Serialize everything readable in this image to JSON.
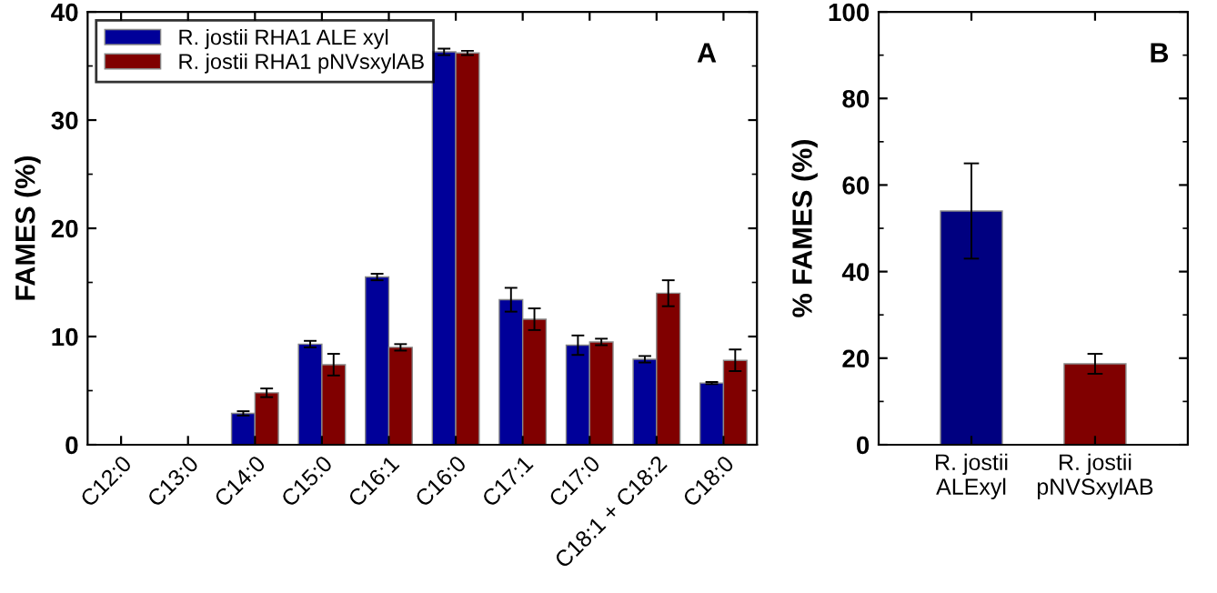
{
  "chart_data": [
    {
      "type": "bar",
      "ylabel": "FAMES (%)",
      "categories": [
        "C12:0",
        "C13:0",
        "C14:0",
        "C15:0",
        "C16:1",
        "C16:0",
        "C17:1",
        "C17:0",
        "C18:1 + C18:2",
        "C18:0"
      ],
      "series": [
        {
          "name": "R. jostii RHA1 ALE xyl",
          "color": "#000099",
          "values": [
            null,
            null,
            2.9,
            9.3,
            15.5,
            36.3,
            13.4,
            9.2,
            7.9,
            5.7
          ],
          "errors": [
            null,
            null,
            0.2,
            0.3,
            0.3,
            0.3,
            1.1,
            0.9,
            0.3,
            0.1
          ]
        },
        {
          "name": "R. jostii RHA1 pNVsxylAB",
          "color": "#800000",
          "values": [
            null,
            null,
            4.8,
            7.4,
            9.0,
            36.2,
            11.6,
            9.5,
            14.0,
            7.8
          ],
          "errors": [
            null,
            null,
            0.4,
            1.0,
            0.3,
            0.2,
            1.0,
            0.3,
            1.2,
            1.0
          ]
        }
      ],
      "ylim": [
        0,
        40
      ],
      "yticks": [
        0,
        10,
        20,
        30,
        40
      ],
      "legend": "top left",
      "grid": false,
      "annotations": [
        "A"
      ]
    },
    {
      "type": "bar",
      "ylabel": "% FAMES (%)",
      "categories": [
        "R. jostii\nALExyl",
        "R. jostii\npNVSxylAB"
      ],
      "values": [
        54,
        18.7
      ],
      "errors": [
        11,
        2.3
      ],
      "colors": [
        "#000080",
        "#800000"
      ],
      "ylim": [
        0,
        100
      ],
      "yticks": [
        0,
        20,
        40,
        60,
        80,
        100
      ],
      "grid": false,
      "annotations": [
        "B"
      ]
    }
  ]
}
